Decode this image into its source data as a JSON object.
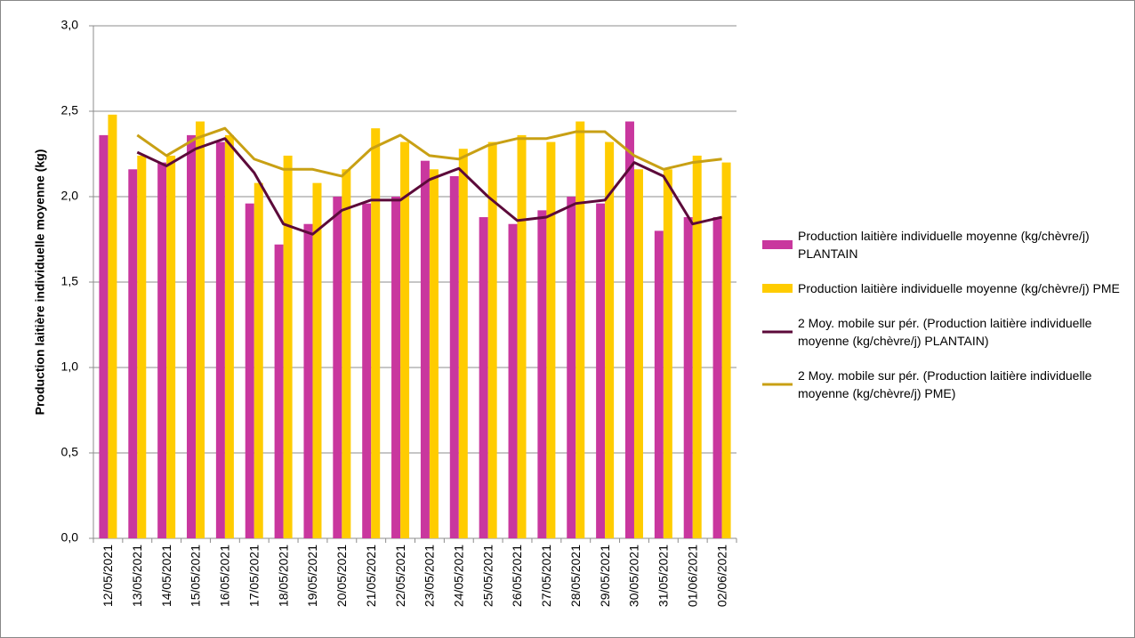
{
  "chart_data": {
    "type": "bar_line",
    "y_label": "Production laitière individuelle moyenne (kg)",
    "categories": [
      "12/05/2021",
      "13/05/2021",
      "14/05/2021",
      "15/05/2021",
      "16/05/2021",
      "17/05/2021",
      "18/05/2021",
      "19/05/2021",
      "20/05/2021",
      "21/05/2021",
      "22/05/2021",
      "23/05/2021",
      "24/05/2021",
      "25/05/2021",
      "26/05/2021",
      "27/05/2021",
      "28/05/2021",
      "29/05/2021",
      "30/05/2021",
      "31/05/2021",
      "01/06/2021",
      "02/06/2021"
    ],
    "series": [
      {
        "name": "Production laitière individuelle moyenne (kg/chèvre/j) PLANTAIN",
        "type": "bar",
        "color": "#c9379e",
        "values": [
          2.36,
          2.16,
          2.2,
          2.36,
          2.32,
          1.96,
          1.72,
          1.84,
          2.0,
          1.96,
          2.0,
          2.21,
          2.12,
          1.88,
          1.84,
          1.92,
          2.0,
          1.96,
          2.44,
          1.8,
          1.88,
          1.88
        ]
      },
      {
        "name": "Production laitière individuelle moyenne (kg/chèvre/j) PME",
        "type": "bar",
        "color": "#ffcc00",
        "values": [
          2.48,
          2.24,
          2.24,
          2.44,
          2.36,
          2.08,
          2.24,
          2.08,
          2.16,
          2.4,
          2.32,
          2.16,
          2.28,
          2.32,
          2.36,
          2.32,
          2.44,
          2.32,
          2.16,
          2.16,
          2.24,
          2.2
        ]
      },
      {
        "name": "2 Moy. mobile sur pér. (Production laitière individuelle moyenne (kg/chèvre/j) PLANTAIN)",
        "type": "line",
        "color": "#5c0a3a",
        "values": [
          null,
          2.26,
          2.18,
          2.28,
          2.34,
          2.14,
          1.84,
          1.78,
          1.92,
          1.98,
          1.98,
          2.1,
          2.165,
          2.0,
          1.86,
          1.88,
          1.96,
          1.98,
          2.2,
          2.12,
          1.84,
          1.88
        ]
      },
      {
        "name": "2 Moy. mobile sur pér. (Production laitière individuelle moyenne (kg/chèvre/j) PME)",
        "type": "line",
        "color": "#c8a014",
        "values": [
          null,
          2.36,
          2.24,
          2.34,
          2.4,
          2.22,
          2.16,
          2.16,
          2.12,
          2.28,
          2.36,
          2.24,
          2.22,
          2.3,
          2.34,
          2.34,
          2.38,
          2.38,
          2.24,
          2.16,
          2.2,
          2.22
        ]
      }
    ],
    "ylim": [
      0,
      3
    ],
    "yticks": [
      {
        "value": 0,
        "label": "0,0"
      },
      {
        "value": 0.5,
        "label": "0,5"
      },
      {
        "value": 1,
        "label": "1,0"
      },
      {
        "value": 1.5,
        "label": "1,5"
      },
      {
        "value": 2,
        "label": "2,0"
      },
      {
        "value": 2.5,
        "label": "2,5"
      },
      {
        "value": 3,
        "label": "3,0"
      }
    ],
    "grid": true,
    "legend": "right"
  }
}
